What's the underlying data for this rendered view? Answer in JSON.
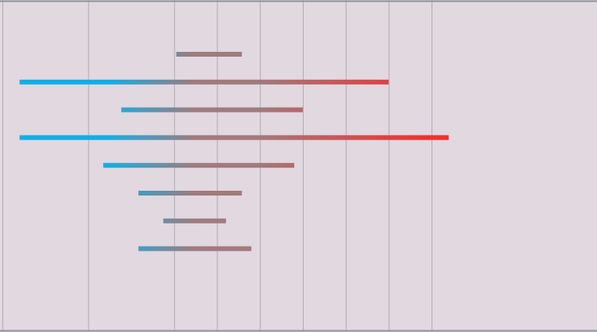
{
  "chart_data": {
    "type": "range-bar",
    "title": "",
    "xlabel": "",
    "ylabel": "",
    "grid": true,
    "legend": "none",
    "x_gridlines": [
      0,
      2,
      4,
      5,
      6,
      7,
      8,
      9,
      10
    ],
    "xlim": [
      0,
      13.85
    ],
    "bars": [
      {
        "start": 4.05,
        "end": 5.58
      },
      {
        "start": 0.4,
        "end": 9.0
      },
      {
        "start": 2.77,
        "end": 7.0
      },
      {
        "start": 0.4,
        "end": 10.4
      },
      {
        "start": 2.35,
        "end": 6.8
      },
      {
        "start": 3.17,
        "end": 5.58
      },
      {
        "start": 3.75,
        "end": 5.21
      },
      {
        "start": 3.17,
        "end": 5.8
      }
    ],
    "colors": {
      "background": "#e1d8e0",
      "grid": "#b2aab4",
      "axis": "#8f949c",
      "gradient_low": "#12aee6",
      "gradient_mid": "#a27a7c",
      "gradient_high": "#f03030"
    }
  }
}
